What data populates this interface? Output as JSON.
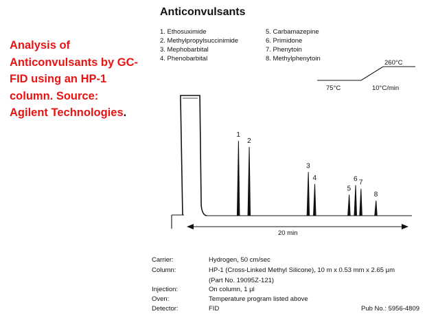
{
  "caption": {
    "lines": [
      "Analysis of",
      "Anticonvulsants by GC-",
      "FID using an HP-1",
      "column. Source:"
    ],
    "last_line": "Agilent Technologies",
    "last_punct": "."
  },
  "figure_title": "Anticonvulsants",
  "compounds": [
    "1. Ethosuximide",
    "2. Methylpropylsuccinimide",
    "3. Mephobarbital",
    "4. Phenobarbital",
    "5. Carbamazepine",
    "6. Primidone",
    "7. Phenytoin",
    "8. Methylphenytoin"
  ],
  "chart_data": {
    "type": "line",
    "description_of_series": "chromatogram (detector response vs time)",
    "x_span_label": "20 min",
    "x_range_min": [
      0,
      20
    ],
    "peaks": [
      {
        "label": "1",
        "time_min": 4.5,
        "height": 0.62
      },
      {
        "label": "2",
        "time_min": 5.5,
        "height": 0.57
      },
      {
        "label": "3",
        "time_min": 11.0,
        "height": 0.36
      },
      {
        "label": "4",
        "time_min": 11.6,
        "height": 0.26
      },
      {
        "label": "5",
        "time_min": 14.8,
        "height": 0.17
      },
      {
        "label": "6",
        "time_min": 15.4,
        "height": 0.25
      },
      {
        "label": "7",
        "time_min": 15.9,
        "height": 0.22
      },
      {
        "label": "8",
        "time_min": 17.3,
        "height": 0.12
      }
    ],
    "solvent_front": {
      "start_min": -0.9,
      "end_min": 0.9,
      "height": 1.0
    }
  },
  "temp_program": {
    "initial": "75°C",
    "rate": "10°C/min",
    "final": "260°C"
  },
  "conditions": [
    {
      "label": "Carrier:",
      "value": "Hydrogen, 50 cm/sec"
    },
    {
      "label": "Column:",
      "value": "HP-1 (Cross-Linked Methyl Silicone), 10 m x 0.53 mm x 2.65 µm"
    },
    {
      "label": "",
      "value": "(Part No. 19095Z-121)"
    },
    {
      "label": "Injection:",
      "value": "On column, 1 µl"
    },
    {
      "label": "Oven:",
      "value": "Temperature program listed above"
    },
    {
      "label": "Detector:",
      "value": "FID"
    }
  ],
  "pub_no": "Pub No.: 5956-4809",
  "colors": {
    "caption": "#e81313",
    "ink": "#111111"
  }
}
